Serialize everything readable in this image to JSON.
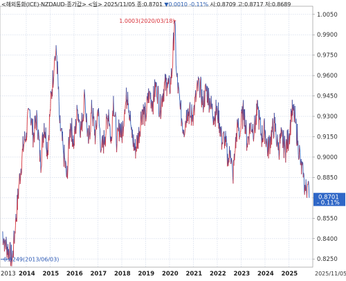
{
  "header": {
    "title": "<해외통화(ICE)-NZDAUD-종가값>",
    "period": "<일>",
    "date": "2025/11/05",
    "close_label": "종",
    "close": "0.8701",
    "change": "▼0.0010",
    "change_pct": "-0.11%",
    "open_label": "시",
    "open": "0.8709",
    "high_label": "고",
    "high": "0.8717",
    "low_label": "저",
    "low": "0.8689"
  },
  "colors": {
    "up": "#d8323a",
    "down": "#2b58b5",
    "grid": "#c9d3e6",
    "axis": "#888888",
    "current_box": "#2f67c7",
    "background": "#ffffff"
  },
  "chart_data": {
    "type": "line",
    "x_labels": [
      "2013",
      "2014",
      "2015",
      "2016",
      "2017",
      "2018",
      "2019",
      "2020",
      "2021",
      "2022",
      "2023",
      "2024",
      "2025",
      "2025/11/05"
    ],
    "yticks": [
      "1.0050",
      "0.9900",
      "0.9750",
      "0.9600",
      "0.9450",
      "0.9300",
      "0.9150",
      "0.9000",
      "0.8850",
      "0.8700",
      "0.8550",
      "0.8400",
      "0.8250"
    ],
    "ylim": [
      0.819,
      1.011
    ],
    "grid": true,
    "annotations": {
      "max_label": "1.0003(2020/03/18)",
      "max_value": 1.0003,
      "max_x": 2020.21,
      "min_label": "0.8249(2013/06/03)",
      "min_value": 0.8249,
      "min_x": 2013.42,
      "current_value": 0.8701,
      "current_label": "0.8701",
      "current_change": "- 0.11%"
    },
    "series": [
      {
        "values": [
          [
            2013.0,
            0.845
          ],
          [
            2013.1,
            0.838
          ],
          [
            2013.2,
            0.834
          ],
          [
            2013.3,
            0.829
          ],
          [
            2013.42,
            0.8249
          ],
          [
            2013.55,
            0.85
          ],
          [
            2013.7,
            0.88
          ],
          [
            2013.85,
            0.905
          ],
          [
            2014.0,
            0.918
          ],
          [
            2014.15,
            0.935
          ],
          [
            2014.3,
            0.915
          ],
          [
            2014.45,
            0.93
          ],
          [
            2014.6,
            0.895
          ],
          [
            2014.75,
            0.925
          ],
          [
            2014.9,
            0.905
          ],
          [
            2015.0,
            0.935
          ],
          [
            2015.08,
            0.95
          ],
          [
            2015.18,
            0.972
          ],
          [
            2015.28,
            0.975
          ],
          [
            2015.4,
            0.925
          ],
          [
            2015.55,
            0.905
          ],
          [
            2015.7,
            0.885
          ],
          [
            2015.85,
            0.925
          ],
          [
            2016.0,
            0.91
          ],
          [
            2016.15,
            0.935
          ],
          [
            2016.3,
            0.92
          ],
          [
            2016.45,
            0.945
          ],
          [
            2016.6,
            0.91
          ],
          [
            2016.75,
            0.935
          ],
          [
            2016.9,
            0.915
          ],
          [
            2017.0,
            0.935
          ],
          [
            2017.15,
            0.905
          ],
          [
            2017.3,
            0.915
          ],
          [
            2017.45,
            0.935
          ],
          [
            2017.55,
            0.91
          ],
          [
            2017.65,
            0.945
          ],
          [
            2017.8,
            0.91
          ],
          [
            2017.92,
            0.925
          ],
          [
            2018.0,
            0.915
          ],
          [
            2018.12,
            0.935
          ],
          [
            2018.25,
            0.948
          ],
          [
            2018.4,
            0.92
          ],
          [
            2018.55,
            0.905
          ],
          [
            2018.7,
            0.915
          ],
          [
            2018.85,
            0.935
          ],
          [
            2019.0,
            0.93
          ],
          [
            2019.15,
            0.948
          ],
          [
            2019.3,
            0.94
          ],
          [
            2019.45,
            0.955
          ],
          [
            2019.6,
            0.935
          ],
          [
            2019.75,
            0.95
          ],
          [
            2019.9,
            0.955
          ],
          [
            2020.0,
            0.95
          ],
          [
            2020.12,
            0.965
          ],
          [
            2020.21,
            1.0003
          ],
          [
            2020.3,
            0.96
          ],
          [
            2020.45,
            0.935
          ],
          [
            2020.6,
            0.92
          ],
          [
            2020.75,
            0.935
          ],
          [
            2020.9,
            0.93
          ],
          [
            2021.0,
            0.932
          ],
          [
            2021.12,
            0.945
          ],
          [
            2021.25,
            0.955
          ],
          [
            2021.4,
            0.94
          ],
          [
            2021.55,
            0.95
          ],
          [
            2021.7,
            0.94
          ],
          [
            2021.85,
            0.93
          ],
          [
            2022.0,
            0.935
          ],
          [
            2022.1,
            0.925
          ],
          [
            2022.2,
            0.91
          ],
          [
            2022.32,
            0.915
          ],
          [
            2022.45,
            0.895
          ],
          [
            2022.55,
            0.905
          ],
          [
            2022.65,
            0.885
          ],
          [
            2022.75,
            0.905
          ],
          [
            2022.85,
            0.925
          ],
          [
            2022.95,
            0.915
          ],
          [
            2023.0,
            0.925
          ],
          [
            2023.12,
            0.935
          ],
          [
            2023.25,
            0.91
          ],
          [
            2023.4,
            0.925
          ],
          [
            2023.55,
            0.92
          ],
          [
            2023.7,
            0.935
          ],
          [
            2023.85,
            0.915
          ],
          [
            2024.0,
            0.92
          ],
          [
            2024.12,
            0.905
          ],
          [
            2024.25,
            0.915
          ],
          [
            2024.4,
            0.925
          ],
          [
            2024.55,
            0.905
          ],
          [
            2024.7,
            0.915
          ],
          [
            2024.85,
            0.905
          ],
          [
            2025.0,
            0.915
          ],
          [
            2025.1,
            0.93
          ],
          [
            2025.18,
            0.935
          ],
          [
            2025.28,
            0.925
          ],
          [
            2025.38,
            0.912
          ],
          [
            2025.5,
            0.895
          ],
          [
            2025.6,
            0.885
          ],
          [
            2025.7,
            0.875
          ],
          [
            2025.78,
            0.88
          ],
          [
            2025.85,
            0.8701
          ]
        ]
      }
    ]
  }
}
